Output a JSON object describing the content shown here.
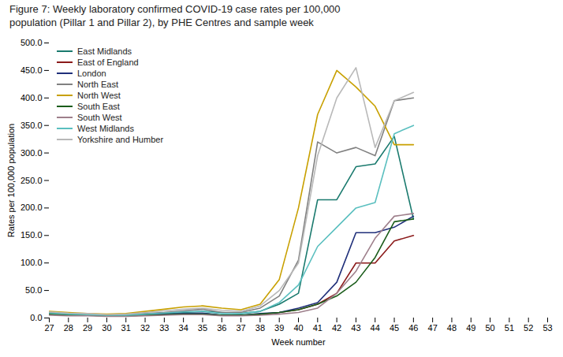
{
  "chart_data": {
    "type": "line",
    "title": "Figure 7: Weekly laboratory confirmed COVID-19 case rates per 100,000\npopulation (Pillar 1 and Pillar 2), by PHE Centres and sample week",
    "xlabel": "Week number",
    "ylabel": "Rates per 100,000 population",
    "x": [
      27,
      28,
      29,
      30,
      31,
      32,
      33,
      34,
      35,
      36,
      37,
      38,
      39,
      40,
      41,
      42,
      43,
      44,
      45,
      46
    ],
    "series": [
      {
        "name": "East Midlands",
        "color": "#1a7a6e",
        "values": [
          8,
          7,
          6,
          5,
          5,
          6,
          8,
          10,
          12,
          10,
          8,
          12,
          25,
          45,
          215,
          215,
          275,
          280,
          330,
          180
        ]
      },
      {
        "name": "East of England",
        "color": "#8b1a1a",
        "values": [
          8,
          6,
          5,
          4,
          4,
          5,
          6,
          7,
          8,
          5,
          5,
          6,
          10,
          15,
          25,
          45,
          100,
          100,
          140,
          150
        ]
      },
      {
        "name": "London",
        "color": "#1f2f7a",
        "values": [
          9,
          7,
          6,
          5,
          5,
          6,
          7,
          8,
          9,
          5,
          5,
          8,
          10,
          18,
          28,
          65,
          155,
          155,
          165,
          185
        ]
      },
      {
        "name": "North East",
        "color": "#808080",
        "values": [
          10,
          8,
          7,
          6,
          6,
          8,
          10,
          13,
          16,
          10,
          10,
          18,
          40,
          105,
          320,
          300,
          310,
          295,
          395,
          400
        ]
      },
      {
        "name": "North West",
        "color": "#c8a000",
        "values": [
          12,
          10,
          8,
          7,
          8,
          12,
          16,
          20,
          22,
          18,
          15,
          25,
          70,
          200,
          370,
          450,
          420,
          385,
          315,
          315
        ]
      },
      {
        "name": "South East",
        "color": "#1a5c1a",
        "values": [
          7,
          6,
          5,
          4,
          4,
          5,
          6,
          7,
          7,
          5,
          5,
          7,
          10,
          15,
          25,
          40,
          65,
          110,
          175,
          180
        ]
      },
      {
        "name": "South West",
        "color": "#9e7f8b",
        "values": [
          5,
          4,
          4,
          3,
          3,
          4,
          5,
          6,
          6,
          4,
          4,
          5,
          7,
          10,
          18,
          45,
          85,
          145,
          185,
          190
        ]
      },
      {
        "name": "West Midlands",
        "color": "#5abfbf",
        "values": [
          9,
          7,
          6,
          5,
          5,
          7,
          9,
          11,
          12,
          8,
          8,
          12,
          28,
          60,
          130,
          165,
          200,
          210,
          335,
          350
        ]
      },
      {
        "name": "Yorkshire and Humber",
        "color": "#b8b8b8",
        "values": [
          11,
          9,
          8,
          6,
          7,
          10,
          13,
          16,
          18,
          14,
          12,
          22,
          50,
          100,
          295,
          400,
          455,
          310,
          395,
          410
        ]
      }
    ],
    "xlim": [
      27,
      53
    ],
    "ylim": [
      0,
      500
    ],
    "xticks": [
      27,
      28,
      29,
      30,
      31,
      32,
      33,
      34,
      35,
      36,
      37,
      38,
      39,
      40,
      41,
      42,
      43,
      44,
      45,
      46,
      47,
      48,
      49,
      50,
      51,
      52,
      53
    ],
    "yticks": [
      {
        "value": 0,
        "label": "0.0"
      },
      {
        "value": 50,
        "label": "50.0"
      },
      {
        "value": 100,
        "label": "100.0"
      },
      {
        "value": 150,
        "label": "150.0"
      },
      {
        "value": 200,
        "label": "200.0"
      },
      {
        "value": 250,
        "label": "250.0"
      },
      {
        "value": 300,
        "label": "300.0"
      },
      {
        "value": 350,
        "label": "350.0"
      },
      {
        "value": 400,
        "label": "400.0"
      },
      {
        "value": 450,
        "label": "450.0"
      },
      {
        "value": 500,
        "label": "500.0"
      }
    ],
    "grid": false,
    "legend": "upper left"
  }
}
